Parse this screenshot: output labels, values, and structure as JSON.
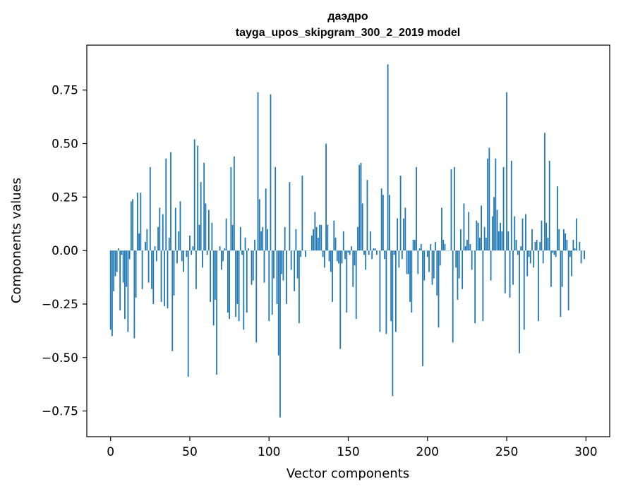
{
  "chart_data": {
    "type": "bar",
    "title": "даэдро",
    "subtitle": "tayga_upos_skipgram_300_2_2019 model",
    "xlabel": "Vector components",
    "ylabel": "Components values",
    "xlim": [
      -15,
      315
    ],
    "ylim": [
      -0.87,
      0.96
    ],
    "xticks": [
      0,
      50,
      100,
      150,
      200,
      250,
      300
    ],
    "xtick_labels": [
      "0",
      "50",
      "100",
      "150",
      "200",
      "250",
      "300"
    ],
    "yticks": [
      -0.75,
      -0.5,
      -0.25,
      0.0,
      0.25,
      0.5,
      0.75
    ],
    "ytick_labels": [
      "−0.75",
      "−0.50",
      "−0.25",
      "0.00",
      "0.25",
      "0.50",
      "0.75"
    ],
    "grid": false,
    "bar_color": "#1f77b4",
    "values": [
      -0.37,
      -0.4,
      -0.19,
      -0.12,
      -0.1,
      0.01,
      -0.28,
      -0.02,
      -0.15,
      -0.32,
      -0.17,
      -0.38,
      -0.04,
      0.23,
      0.24,
      -0.41,
      -0.22,
      0.27,
      0.08,
      0.27,
      -0.18,
      0.0,
      0.04,
      0.1,
      -0.15,
      0.39,
      -0.18,
      -0.25,
      0.02,
      -0.05,
      0.11,
      0.2,
      -0.24,
      0.17,
      -0.26,
      0.43,
      -0.27,
      0.06,
      0.46,
      -0.47,
      -0.21,
      0.2,
      -0.06,
      0.09,
      0.23,
      -0.05,
      -0.1,
      0.0,
      -0.03,
      -0.59,
      0.07,
      -0.02,
      0.02,
      0.52,
      -0.18,
      0.49,
      0.12,
      0.32,
      -0.08,
      0.41,
      0.22,
      -0.02,
      0.19,
      -0.24,
      0.13,
      -0.35,
      -0.23,
      -0.58,
      0.0,
      0.02,
      -0.09,
      -0.05,
      0.01,
      0.15,
      -0.29,
      -0.32,
      0.39,
      0.12,
      0.44,
      -0.31,
      -0.25,
      -0.33,
      0.11,
      -0.02,
      -0.37,
      0.06,
      -0.29,
      0.01,
      0.0,
      -0.16,
      -0.14,
      0.05,
      -0.43,
      0.74,
      0.24,
      0.09,
      0.11,
      -0.15,
      0.29,
      0.1,
      -0.33,
      0.73,
      -0.3,
      -0.13,
      0.39,
      -0.25,
      -0.49,
      -0.78,
      -0.11,
      -0.14,
      0.11,
      -0.25,
      0.0,
      0.32,
      -0.09,
      0.0,
      -0.19,
      0.1,
      -0.13,
      -0.34,
      -0.03,
      0.35,
      0.0,
      -0.03,
      0.0,
      0.0,
      0.0,
      0.07,
      0.1,
      0.18,
      0.11,
      0.06,
      0.12,
      0.12,
      -0.03,
      -0.08,
      0.5,
      0.12,
      -0.05,
      -0.1,
      -0.24,
      0.14,
      0.06,
      -0.05,
      -0.06,
      -0.46,
      -0.06,
      0.09,
      -0.04,
      -0.29,
      -0.01,
      -0.02,
      0.02,
      -0.17,
      -0.07,
      -0.32,
      0.11,
      0.4,
      0.41,
      0.22,
      -0.02,
      -0.09,
      0.33,
      -0.02,
      0.09,
      -0.04,
      0.01,
      0.01,
      -0.02,
      0.0,
      -0.38,
      0.29,
      0.26,
      -0.04,
      -0.39,
      0.87,
      0.26,
      -0.33,
      -0.68,
      -0.02,
      -0.38,
      0.15,
      -0.08,
      0.35,
      -0.04,
      0.15,
      0.2,
      -0.11,
      -0.11,
      -0.24,
      -0.29,
      0.05,
      0.05,
      0.39,
      -0.11,
      0.01,
      0.03,
      -0.54,
      -0.14,
      0.0,
      -0.03,
      -0.1,
      0.03,
      -0.16,
      -0.13,
      0.04,
      -0.21,
      -0.36,
      -0.07,
      0.2,
      0.05,
      0.03,
      0.0,
      0.0,
      0.0,
      0.38,
      -0.43,
      0.39,
      -0.08,
      -0.23,
      -0.13,
      0.1,
      -0.18,
      0.22,
      0.02,
      0.05,
      0.18,
      0.03,
      -0.09,
      0.0,
      -0.34,
      0.14,
      0.13,
      0.06,
      0.21,
      -0.33,
      0.11,
      0.06,
      0.43,
      0.48,
      -0.14,
      0.16,
      0.25,
      0.43,
      0.19,
      0.09,
      0.13,
      0.09,
      0.39,
      -0.2,
      0.74,
      0.09,
      -0.22,
      0.42,
      -0.16,
      0.16,
      0.05,
      -0.02,
      -0.48,
      0.02,
      0.15,
      -0.37,
      0.17,
      -0.12,
      -0.03,
      -0.06,
      0.1,
      -0.08,
      0.04,
      0.05,
      -0.33,
      0.04,
      0.14,
      -0.06,
      0.55,
      0.13,
      0.06,
      0.42,
      -0.17,
      -0.01,
      -0.02,
      -0.03,
      0.3,
      0.1,
      -0.31,
      -0.17,
      0.1,
      0.08,
      0.05,
      -0.28,
      -0.03,
      -0.12,
      0.05,
      0.01,
      0.15,
      0.0,
      0.04,
      -0.06,
      0.0,
      -0.04
    ]
  }
}
